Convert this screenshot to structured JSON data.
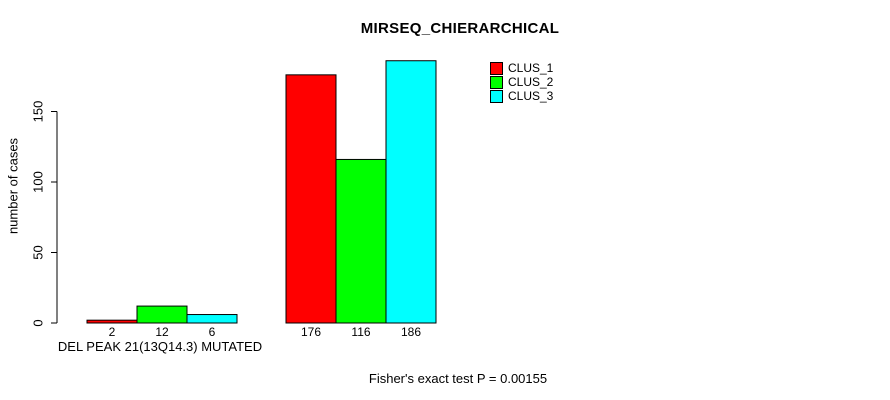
{
  "chart_data": {
    "type": "bar",
    "title": "MIRSEQ_CHIERARCHICAL",
    "ylabel": "number of cases",
    "xlabel": "DEL PEAK 21(13Q14.3) MUTATED",
    "footnote": "Fisher's exact test P = 0.00155",
    "series": [
      {
        "name": "CLUS_1",
        "color": "#FF0000",
        "values": [
          2,
          176
        ]
      },
      {
        "name": "CLUS_2",
        "color": "#00FF00",
        "values": [
          12,
          116
        ]
      },
      {
        "name": "CLUS_3",
        "color": "#00FFFF",
        "values": [
          6,
          186
        ]
      }
    ],
    "group_labels": [
      "DEL PEAK 21(13Q14.3) MUTATED",
      ""
    ],
    "bar_value_labels": [
      [
        2,
        176
      ],
      [
        12,
        116
      ],
      [
        6,
        186
      ]
    ],
    "yticks": [
      0,
      50,
      100,
      150
    ],
    "ylim": [
      0,
      190
    ],
    "grid": false,
    "legend_entries": [
      "CLUS_1",
      "CLUS_2",
      "CLUS_3"
    ],
    "legend_position": "top-right",
    "axis_color": "#000000",
    "bar_border_color": "#000000",
    "background_color": "#FFFFFF"
  }
}
